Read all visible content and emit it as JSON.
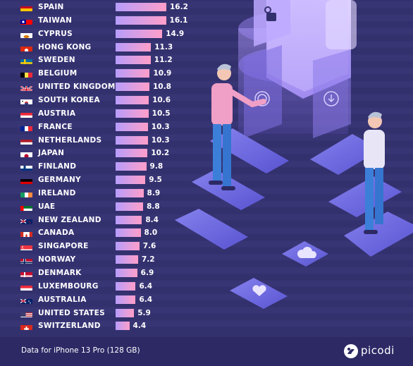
{
  "chart_data": {
    "type": "bar",
    "orientation": "horizontal",
    "categories": [
      "SPAIN",
      "TAIWAN",
      "CYPRUS",
      "HONG KONG",
      "SWEDEN",
      "BELGIUM",
      "UNITED KINGDOM",
      "SOUTH KOREA",
      "AUSTRIA",
      "FRANCE",
      "NETHERLANDS",
      "JAPAN",
      "FINLAND",
      "GERMANY",
      "IRELAND",
      "UAE",
      "NEW ZEALAND",
      "CANADA",
      "SINGAPORE",
      "NORWAY",
      "DENMARK",
      "LUXEMBOURG",
      "AUSTRALIA",
      "UNITED STATES",
      "SWITZERLAND"
    ],
    "values": [
      16.2,
      16.1,
      14.9,
      11.3,
      11.2,
      10.9,
      10.8,
      10.6,
      10.5,
      10.3,
      10.3,
      10.2,
      9.8,
      9.5,
      8.9,
      8.8,
      8.4,
      8.0,
      7.6,
      7.2,
      6.9,
      6.4,
      6.4,
      5.9,
      4.4
    ],
    "value_labels": [
      "16.2",
      "16.1",
      "14.9",
      "11.3",
      "11.2",
      "10.9",
      "10.8",
      "10.6",
      "10.5",
      "10.3",
      "10.3",
      "10.2",
      "9.8",
      "9.5",
      "8.9",
      "8.8",
      "8.4",
      "8.0",
      "7.6",
      "7.2",
      "6.9",
      "6.4",
      "6.4",
      "5.9",
      "4.4"
    ],
    "flag_icons": [
      "flag-spain-icon",
      "flag-taiwan-icon",
      "flag-cyprus-icon",
      "flag-hong-kong-icon",
      "flag-sweden-icon",
      "flag-belgium-icon",
      "flag-united-kingdom-icon",
      "flag-south-korea-icon",
      "flag-austria-icon",
      "flag-france-icon",
      "flag-netherlands-icon",
      "flag-japan-icon",
      "flag-finland-icon",
      "flag-germany-icon",
      "flag-ireland-icon",
      "flag-uae-icon",
      "flag-new-zealand-icon",
      "flag-canada-icon",
      "flag-singapore-icon",
      "flag-norway-icon",
      "flag-denmark-icon",
      "flag-luxembourg-icon",
      "flag-australia-icon",
      "flag-united-states-icon",
      "flag-switzerland-icon"
    ],
    "bar_gradient": [
      "#b79dfb",
      "#ff9ec9"
    ],
    "grid": false,
    "legend": "none"
  },
  "footer": {
    "source": "Data for iPhone 13 Pro (128 GB)",
    "brand": "picodi",
    "logo_icon": "picodi-logo-icon"
  },
  "colors": {
    "background": "#33306e",
    "footer_background": "#2c2965",
    "text": "#ffffff"
  }
}
